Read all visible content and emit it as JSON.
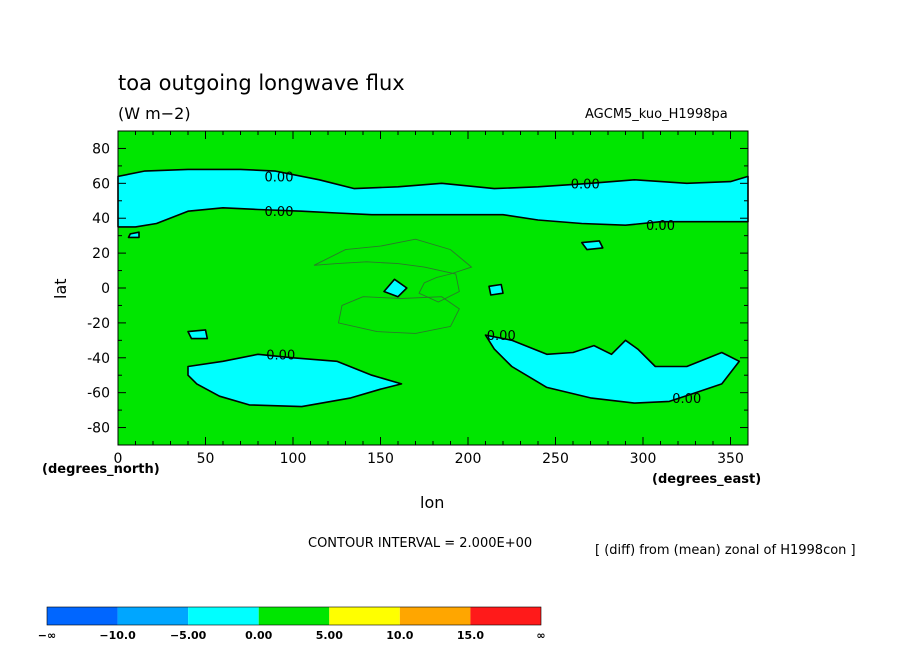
{
  "chart_data": {
    "type": "heatmap",
    "title": "toa outgoing longwave flux",
    "units": "(W m−2)",
    "model": "AGCM5_kuo_H1998pa",
    "xlabel": "lon",
    "ylabel": "lat",
    "x_unit_label": "(degrees_east)",
    "y_unit_label": "(degrees_north)",
    "xlim": [
      0,
      360
    ],
    "ylim": [
      -90,
      90
    ],
    "x_ticks": [
      0,
      50,
      100,
      150,
      200,
      250,
      300,
      350
    ],
    "y_ticks": [
      -80,
      -60,
      -40,
      -20,
      0,
      20,
      40,
      60,
      80
    ],
    "contour_interval_text": "CONTOUR INTERVAL = 2.000E+00",
    "note": "[ (diff) from (mean) zonal of H1998con ]",
    "contour_labels": [
      {
        "text": "0.00",
        "lon": 92,
        "lat": 64
      },
      {
        "text": "0.00",
        "lon": 92,
        "lat": 44
      },
      {
        "text": "0.00",
        "lon": 267,
        "lat": 60
      },
      {
        "text": "0.00",
        "lon": 310,
        "lat": 36
      },
      {
        "text": "0.00",
        "lon": 219,
        "lat": -27
      },
      {
        "text": "0.00",
        "lon": 93,
        "lat": -38
      },
      {
        "text": "0.00",
        "lon": 325,
        "lat": -63
      }
    ],
    "background_level": "0.00 to 5.00",
    "regions_below_zero": [
      {
        "name": "northern-band",
        "points": [
          [
            0,
            64
          ],
          [
            15,
            67
          ],
          [
            40,
            68
          ],
          [
            70,
            68
          ],
          [
            90,
            67
          ],
          [
            115,
            62
          ],
          [
            135,
            57
          ],
          [
            160,
            58
          ],
          [
            185,
            60
          ],
          [
            215,
            57
          ],
          [
            240,
            58
          ],
          [
            270,
            60
          ],
          [
            295,
            62
          ],
          [
            325,
            60
          ],
          [
            350,
            61
          ],
          [
            360,
            64
          ],
          [
            360,
            38
          ],
          [
            335,
            38
          ],
          [
            310,
            38
          ],
          [
            290,
            36
          ],
          [
            265,
            37
          ],
          [
            240,
            39
          ],
          [
            220,
            42
          ],
          [
            205,
            42
          ],
          [
            185,
            42
          ],
          [
            165,
            42
          ],
          [
            145,
            42
          ],
          [
            125,
            43
          ],
          [
            105,
            44
          ],
          [
            80,
            45
          ],
          [
            60,
            46
          ],
          [
            40,
            44
          ],
          [
            22,
            37
          ],
          [
            10,
            35
          ],
          [
            0,
            35
          ]
        ]
      },
      {
        "name": "southern-left-patch",
        "points": [
          [
            40,
            -45
          ],
          [
            60,
            -42
          ],
          [
            80,
            -38
          ],
          [
            100,
            -40
          ],
          [
            125,
            -42
          ],
          [
            145,
            -50
          ],
          [
            162,
            -55
          ],
          [
            150,
            -58
          ],
          [
            133,
            -63
          ],
          [
            105,
            -68
          ],
          [
            75,
            -67
          ],
          [
            58,
            -62
          ],
          [
            45,
            -55
          ],
          [
            40,
            -50
          ]
        ]
      },
      {
        "name": "southern-right-patch",
        "points": [
          [
            210,
            -27
          ],
          [
            225,
            -30
          ],
          [
            245,
            -38
          ],
          [
            260,
            -37
          ],
          [
            272,
            -33
          ],
          [
            282,
            -38
          ],
          [
            290,
            -30
          ],
          [
            297,
            -35
          ],
          [
            307,
            -45
          ],
          [
            325,
            -45
          ],
          [
            345,
            -37
          ],
          [
            355,
            -42
          ],
          [
            345,
            -55
          ],
          [
            330,
            -60
          ],
          [
            315,
            -65
          ],
          [
            295,
            -66
          ],
          [
            270,
            -63
          ],
          [
            245,
            -57
          ],
          [
            225,
            -45
          ],
          [
            215,
            -35
          ]
        ]
      },
      {
        "name": "equatorial-patch",
        "points": [
          [
            158,
            5
          ],
          [
            165,
            0
          ],
          [
            160,
            -5
          ],
          [
            152,
            -2
          ]
        ]
      },
      {
        "name": "small-patch-1",
        "points": [
          [
            40,
            -25
          ],
          [
            50,
            -24
          ],
          [
            51,
            -29
          ],
          [
            42,
            -29
          ]
        ]
      },
      {
        "name": "small-patch-2",
        "points": [
          [
            265,
            26
          ],
          [
            275,
            27
          ],
          [
            277,
            23
          ],
          [
            268,
            22
          ]
        ]
      },
      {
        "name": "small-patch-3",
        "points": [
          [
            212,
            1
          ],
          [
            219,
            2
          ],
          [
            220,
            -3
          ],
          [
            213,
            -4
          ]
        ]
      },
      {
        "name": "small-patch-4",
        "points": [
          [
            7,
            31
          ],
          [
            12,
            32
          ],
          [
            12,
            29
          ],
          [
            6,
            29
          ]
        ]
      }
    ],
    "interior_contours": [
      [
        [
          112,
          13
        ],
        [
          130,
          22
        ],
        [
          150,
          24
        ],
        [
          170,
          28
        ],
        [
          190,
          22
        ],
        [
          202,
          12
        ],
        [
          190,
          8
        ],
        [
          182,
          6
        ],
        [
          175,
          3
        ],
        [
          172,
          -3
        ],
        [
          183,
          -8
        ],
        [
          195,
          -2
        ],
        [
          193,
          8
        ],
        [
          175,
          12
        ],
        [
          160,
          14
        ],
        [
          142,
          15
        ],
        [
          125,
          14
        ]
      ],
      [
        [
          128,
          -10
        ],
        [
          140,
          -5
        ],
        [
          162,
          -6
        ],
        [
          185,
          -5
        ],
        [
          195,
          -12
        ],
        [
          190,
          -22
        ],
        [
          170,
          -26
        ],
        [
          148,
          -25
        ],
        [
          126,
          -20
        ]
      ]
    ],
    "colorbar": {
      "labels": [
        "−∞",
        "−10.0",
        "−5.00",
        "0.00",
        "5.00",
        "10.0",
        "15.0",
        "∞"
      ],
      "colors": [
        "#0066ff",
        "#00a6ff",
        "#00ffff",
        "#00e600",
        "#ffff00",
        "#ffa600",
        "#ff1a1a"
      ]
    },
    "colors": {
      "below_zero": "#00ffff",
      "zero_to_five": "#00e600"
    }
  }
}
